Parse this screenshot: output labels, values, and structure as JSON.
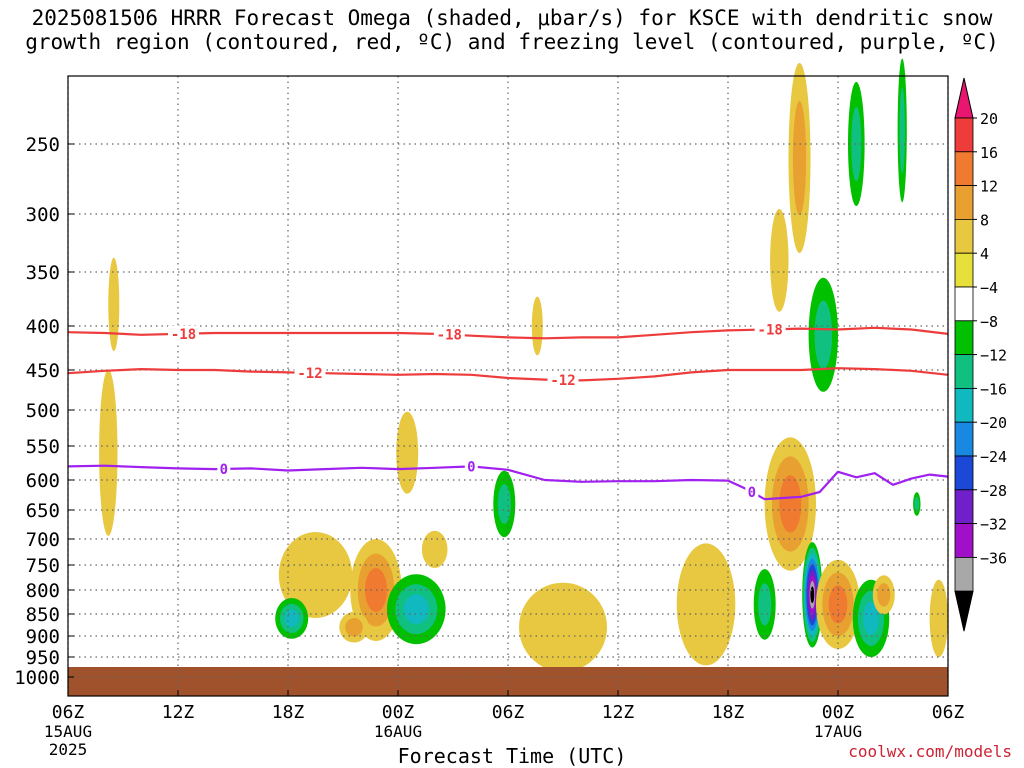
{
  "title_line1": "2025081506 HRRR Forecast Omega (shaded, μbar/s) for KSCE with dendritic snow",
  "title_line2": "growth region (contoured, red, ºC) and freezing level (contoured, purple, ºC)",
  "credit": "coolwx.com/models",
  "colors": {
    "grid": "#666666",
    "ground": "#a0522d",
    "dsg_contour": "#ee3b3b",
    "freezing_contour": "#a020f0"
  },
  "chart_data": {
    "type": "heatmap",
    "xlabel": "Forecast Time (UTC)",
    "ylabel": "",
    "x_range_hours": [
      0,
      48
    ],
    "y_range_mb": [
      1000,
      200
    ],
    "y_scale": "pressure (decreasing upward)",
    "x_ticks": [
      {
        "hour": 0,
        "label": "06Z",
        "sub": "15AUG",
        "sub2": "2025"
      },
      {
        "hour": 6,
        "label": "12Z",
        "sub": "",
        "sub2": ""
      },
      {
        "hour": 12,
        "label": "18Z",
        "sub": "",
        "sub2": ""
      },
      {
        "hour": 18,
        "label": "00Z",
        "sub": "16AUG",
        "sub2": ""
      },
      {
        "hour": 24,
        "label": "06Z",
        "sub": "",
        "sub2": ""
      },
      {
        "hour": 30,
        "label": "12Z",
        "sub": "",
        "sub2": ""
      },
      {
        "hour": 36,
        "label": "18Z",
        "sub": "",
        "sub2": ""
      },
      {
        "hour": 42,
        "label": "00Z",
        "sub": "17AUG",
        "sub2": ""
      },
      {
        "hour": 48,
        "label": "06Z",
        "sub": "",
        "sub2": ""
      }
    ],
    "y_ticks": [
      250,
      300,
      350,
      400,
      450,
      500,
      550,
      600,
      650,
      700,
      750,
      800,
      850,
      900,
      950,
      1000
    ],
    "colorbar": {
      "unit": "μbar/s",
      "labels": [
        "20",
        "16",
        "12",
        "8",
        "4",
        "−4",
        "−8",
        "−12",
        "−16",
        "−20",
        "−24",
        "−28",
        "−32",
        "−36"
      ],
      "colors": [
        "#e8166e",
        "#ee3b3b",
        "#f07a30",
        "#e8a030",
        "#e8c840",
        "#e8e03a",
        "#ffffff",
        "#00c000",
        "#10c080",
        "#10b8c0",
        "#1888e0",
        "#1c48d8",
        "#7020c8",
        "#a010c8",
        "#a8a8a8",
        "#000000"
      ]
    },
    "contours": [
      {
        "name": "-18",
        "kind": "dsg",
        "label": "-18",
        "hours": [
          0,
          2,
          4,
          6,
          8,
          10,
          12,
          14,
          16,
          18,
          20,
          22,
          24,
          26,
          28,
          30,
          32,
          34,
          36,
          38,
          40,
          42,
          44,
          46,
          48
        ],
        "mb": [
          407,
          408,
          410,
          409,
          408,
          408,
          408,
          408,
          408,
          408,
          409,
          411,
          413,
          414,
          413,
          413,
          410,
          407,
          405,
          404,
          403,
          404,
          402,
          404,
          409
        ],
        "label_hours": [
          6.3,
          20.8,
          38.3
        ]
      },
      {
        "name": "-12",
        "kind": "dsg",
        "label": "-12",
        "hours": [
          0,
          2,
          4,
          6,
          8,
          10,
          12,
          14,
          16,
          18,
          20,
          22,
          24,
          26,
          28,
          30,
          32,
          34,
          36,
          38,
          40,
          42,
          44,
          46,
          48
        ],
        "mb": [
          454,
          451,
          449,
          450,
          450,
          452,
          453,
          454,
          455,
          456,
          455,
          456,
          460,
          462,
          463,
          461,
          458,
          453,
          450,
          450,
          450,
          448,
          449,
          451,
          456
        ],
        "label_hours": [
          13.2,
          27.0
        ]
      },
      {
        "name": "0",
        "kind": "freezing",
        "label": "0",
        "hours": [
          0,
          2,
          4,
          6,
          8,
          10,
          12,
          14,
          16,
          18,
          20,
          22,
          24,
          26,
          28,
          30,
          32,
          34,
          36,
          37,
          38,
          39,
          40,
          41,
          42,
          43,
          44,
          45,
          46,
          47,
          48
        ],
        "mb": [
          580,
          579,
          581,
          583,
          584,
          583,
          586,
          584,
          582,
          584,
          582,
          580,
          585,
          600,
          603,
          602,
          602,
          600,
          601,
          615,
          632,
          630,
          628,
          620,
          588,
          596,
          590,
          608,
          598,
          592,
          595
        ],
        "label_hours": [
          8.5,
          22.0,
          37.3
        ]
      }
    ],
    "omega_blobs": [
      {
        "hour": 13.5,
        "mb": 770,
        "dh": 2.0,
        "dmb": 170,
        "value": 4
      },
      {
        "hour": 12.2,
        "mb": 860,
        "dh": 0.9,
        "dmb": 90,
        "value": -14
      },
      {
        "hour": 16.8,
        "mb": 800,
        "dh": 1.4,
        "dmb": 210,
        "value": 14
      },
      {
        "hour": 15.6,
        "mb": 880,
        "dh": 0.8,
        "dmb": 70,
        "value": 8
      },
      {
        "hour": 19.0,
        "mb": 840,
        "dh": 1.6,
        "dmb": 150,
        "value": -12
      },
      {
        "hour": 18.5,
        "mb": 560,
        "dh": 0.6,
        "dmb": 120,
        "value": 4
      },
      {
        "hour": 20.0,
        "mb": 720,
        "dh": 0.7,
        "dmb": 70,
        "value": 4
      },
      {
        "hour": 2.2,
        "mb": 560,
        "dh": 0.5,
        "dmb": 240,
        "value": 4
      },
      {
        "hour": 2.5,
        "mb": 380,
        "dh": 0.3,
        "dmb": 90,
        "value": 4
      },
      {
        "hour": 23.8,
        "mb": 640,
        "dh": 0.6,
        "dmb": 110,
        "value": -8
      },
      {
        "hour": 25.6,
        "mb": 400,
        "dh": 0.3,
        "dmb": 60,
        "value": 4
      },
      {
        "hour": 27.0,
        "mb": 880,
        "dh": 2.4,
        "dmb": 200,
        "value": 6
      },
      {
        "hour": 34.8,
        "mb": 830,
        "dh": 1.6,
        "dmb": 260,
        "value": 4
      },
      {
        "hour": 38.0,
        "mb": 830,
        "dh": 0.6,
        "dmb": 150,
        "value": -10
      },
      {
        "hour": 39.4,
        "mb": 640,
        "dh": 1.4,
        "dmb": 220,
        "value": 12
      },
      {
        "hour": 39.9,
        "mb": 260,
        "dh": 0.6,
        "dmb": 170,
        "value": 10
      },
      {
        "hour": 38.8,
        "mb": 340,
        "dh": 0.5,
        "dmb": 90,
        "value": 4
      },
      {
        "hour": 40.6,
        "mb": 810,
        "dh": 0.55,
        "dmb": 220,
        "value": -36
      },
      {
        "hour": 42.0,
        "mb": 830,
        "dh": 1.2,
        "dmb": 190,
        "value": 12
      },
      {
        "hour": 41.2,
        "mb": 410,
        "dh": 0.8,
        "dmb": 120,
        "value": -10
      },
      {
        "hour": 43.8,
        "mb": 860,
        "dh": 1.0,
        "dmb": 170,
        "value": -14
      },
      {
        "hour": 44.5,
        "mb": 810,
        "dh": 0.6,
        "dmb": 80,
        "value": 8
      },
      {
        "hour": 45.5,
        "mb": 240,
        "dh": 0.25,
        "dmb": 130,
        "value": -8
      },
      {
        "hour": 43.0,
        "mb": 250,
        "dh": 0.45,
        "dmb": 90,
        "value": -8
      },
      {
        "hour": 47.5,
        "mb": 860,
        "dh": 0.5,
        "dmb": 170,
        "value": 4
      },
      {
        "hour": 46.3,
        "mb": 640,
        "dh": 0.2,
        "dmb": 40,
        "value": -8
      }
    ]
  }
}
